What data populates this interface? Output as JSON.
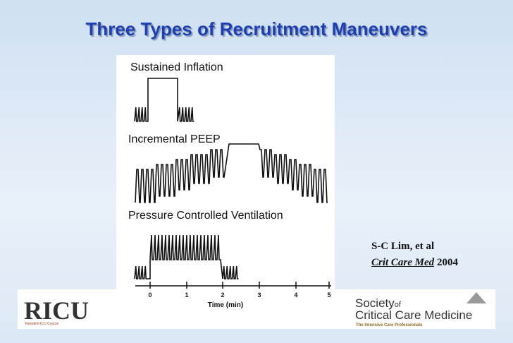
{
  "title": "Three Types of Recruitment Maneuvers",
  "figure": {
    "panels": [
      "Sustained Inflation",
      "Incremental PEEP",
      "Pressure Controlled Ventilation"
    ],
    "x_axis": {
      "ticks": [
        "0",
        "1",
        "2",
        "3",
        "4",
        "5"
      ],
      "label": "Time (min)"
    }
  },
  "citation": {
    "authors": "S-C Lim, et al",
    "journal": "Crit Care Med",
    "year": "2004"
  },
  "logos": {
    "left": {
      "name": "RICU",
      "subtitle": "Resident ICU Course"
    },
    "right": {
      "line1": "Society",
      "of": "of",
      "line2": "Critical Care Medicine",
      "tagline": "The Intensive Care Professionals"
    }
  }
}
